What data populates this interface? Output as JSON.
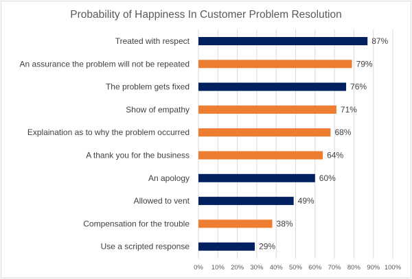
{
  "chart_data": {
    "type": "bar",
    "orientation": "horizontal",
    "title": "Probability of Happiness In Customer Problem Resolution",
    "categories": [
      "Treated with respect",
      "An assurance the problem will not be repeated",
      "The problem gets fixed",
      "Show of empathy",
      "Explaination as to why the problem occurred",
      "A thank you for the business",
      "An apology",
      "Allowed to vent",
      "Compensation for the trouble",
      "Use a scripted response"
    ],
    "values": [
      87,
      79,
      76,
      71,
      68,
      64,
      60,
      49,
      38,
      29
    ],
    "value_labels": [
      "87%",
      "79%",
      "76%",
      "71%",
      "68%",
      "64%",
      "60%",
      "49%",
      "38%",
      "29%"
    ],
    "bar_colors": [
      "#002060",
      "#ED7D31",
      "#002060",
      "#ED7D31",
      "#ED7D31",
      "#ED7D31",
      "#002060",
      "#002060",
      "#ED7D31",
      "#002060"
    ],
    "xlim": [
      0,
      100
    ],
    "x_ticks": [
      "0%",
      "10%",
      "20%",
      "30%",
      "40%",
      "50%",
      "60%",
      "70%",
      "80%",
      "90%",
      "100%"
    ],
    "grid": true,
    "legend": "none"
  }
}
